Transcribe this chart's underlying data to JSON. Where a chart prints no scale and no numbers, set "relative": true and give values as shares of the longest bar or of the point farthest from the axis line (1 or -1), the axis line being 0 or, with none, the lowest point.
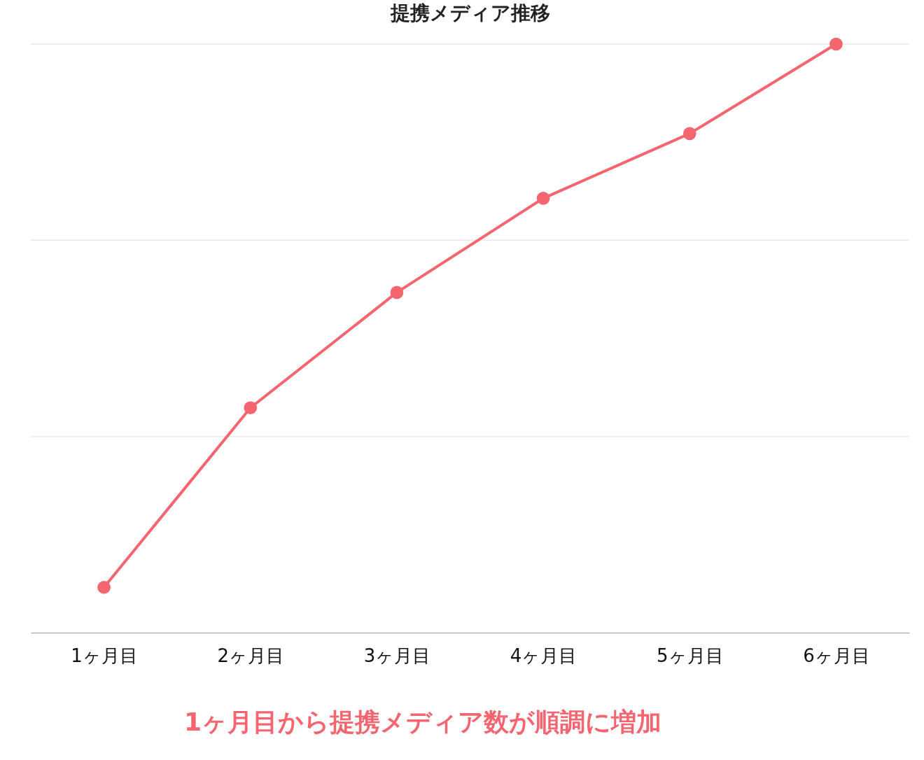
{
  "chart_data": {
    "type": "line",
    "title": "提携メディア推移",
    "relative": true,
    "categories": [
      "1ヶ月目",
      "2ヶ月目",
      "3ヶ月目",
      "4ヶ月目",
      "5ヶ月目",
      "6ヶ月目"
    ],
    "series": [
      {
        "color": "#f4656f",
        "values": [
          0.077,
          0.382,
          0.578,
          0.738,
          0.848,
          1
        ]
      }
    ],
    "marker": "circle",
    "line_style": "solid",
    "ref_lines": [
      {
        "axis": "y",
        "value": 0.333,
        "color": "#dddddd"
      },
      {
        "axis": "y",
        "value": 0.667,
        "color": "#dddddd"
      },
      {
        "axis": "y",
        "value": 1,
        "color": "#dddddd"
      }
    ],
    "annotations": [
      "1ヶ月目から提携メディア数が順調に増加"
    ]
  }
}
